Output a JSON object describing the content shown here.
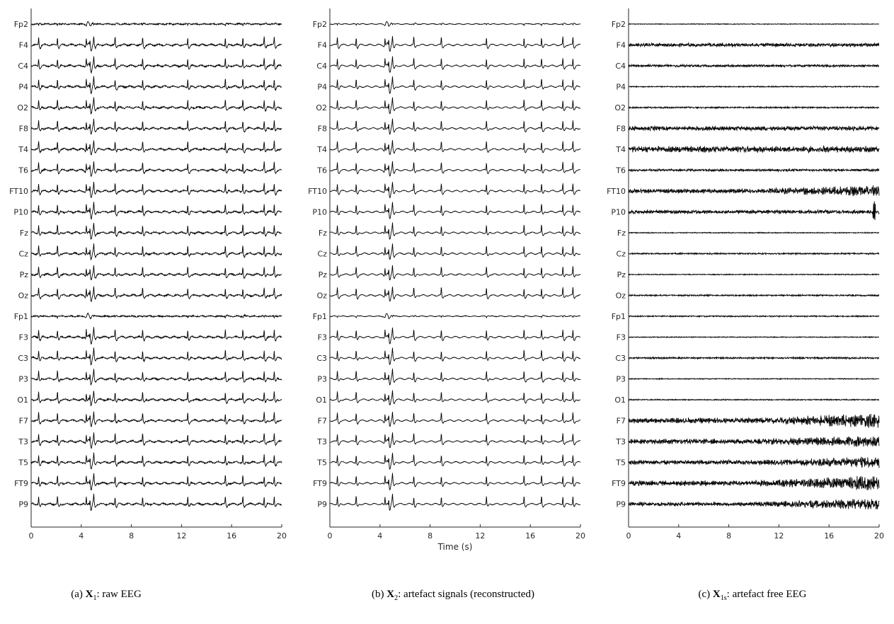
{
  "chart_data": [
    {
      "type": "line",
      "panel": "a",
      "caption": {
        "prefix": "(a) ",
        "symbol": "X",
        "sub": "1",
        "suffix": ": raw EEG"
      },
      "xlabel": "",
      "xlim": [
        0,
        20
      ],
      "xticks": [
        0,
        4,
        8,
        12,
        16,
        20
      ],
      "channels": [
        "Fp2",
        "F4",
        "C4",
        "P4",
        "O2",
        "F8",
        "T4",
        "T6",
        "FT10",
        "P10",
        "Fz",
        "Cz",
        "Pz",
        "Oz",
        "Fp1",
        "F3",
        "C3",
        "P3",
        "O1",
        "F7",
        "T3",
        "T5",
        "FT9",
        "P9"
      ],
      "events_s": [
        0.6,
        2.1,
        4.4,
        4.7,
        5.0,
        6.7,
        8.9,
        12.5,
        15.5,
        16.9,
        18.6,
        19.4
      ],
      "grid": false
    },
    {
      "type": "line",
      "panel": "b",
      "caption": {
        "prefix": "(b) ",
        "symbol": "X",
        "sub": "2",
        "suffix": ": artefact signals (reconstructed)"
      },
      "xlabel": "Time (s)",
      "xlim": [
        0,
        20
      ],
      "xticks": [
        0,
        4,
        8,
        12,
        16,
        20
      ],
      "channels": [
        "Fp2",
        "F4",
        "C4",
        "P4",
        "O2",
        "F8",
        "T4",
        "T6",
        "FT10",
        "P10",
        "Fz",
        "Cz",
        "Pz",
        "Oz",
        "Fp1",
        "F3",
        "C3",
        "P3",
        "O1",
        "F7",
        "T3",
        "T5",
        "FT9",
        "P9"
      ],
      "events_s": [
        0.6,
        2.1,
        4.4,
        4.7,
        5.0,
        6.7,
        8.9,
        12.5,
        15.5,
        16.9,
        18.6,
        19.4
      ],
      "grid": false
    },
    {
      "type": "line",
      "panel": "c",
      "caption": {
        "prefix": "(c) ",
        "symbol": "X",
        "sub": "1s",
        "suffix": ": artefact free EEG"
      },
      "xlabel": "",
      "xlim": [
        0,
        20
      ],
      "xticks": [
        0,
        4,
        8,
        12,
        16,
        20
      ],
      "channels": [
        "Fp2",
        "F4",
        "C4",
        "P4",
        "O2",
        "F8",
        "T4",
        "T6",
        "FT10",
        "P10",
        "Fz",
        "Cz",
        "Pz",
        "Oz",
        "Fp1",
        "F3",
        "C3",
        "P3",
        "O1",
        "F7",
        "T3",
        "T5",
        "FT9",
        "P9"
      ],
      "grid": false
    }
  ],
  "colors": {
    "trace": "#000000",
    "axis": "#262626"
  }
}
